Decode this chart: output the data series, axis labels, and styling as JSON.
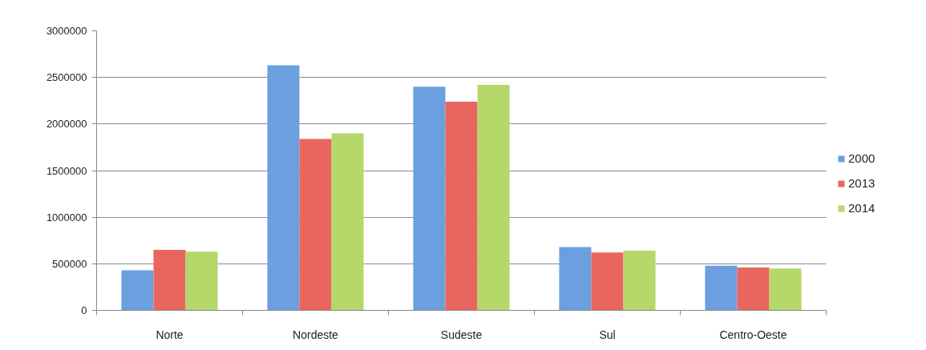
{
  "chart_data": {
    "type": "bar",
    "categories": [
      "Norte",
      "Nordeste",
      "Sudeste",
      "Sul",
      "Centro-Oeste"
    ],
    "series": [
      {
        "name": "2000",
        "color": "#6b9fe0",
        "values": [
          430000,
          2630000,
          2400000,
          680000,
          480000
        ]
      },
      {
        "name": "2013",
        "color": "#e9665f",
        "values": [
          650000,
          1840000,
          2240000,
          620000,
          460000
        ]
      },
      {
        "name": "2014",
        "color": "#b5d86b",
        "values": [
          630000,
          1900000,
          2420000,
          640000,
          450000
        ]
      }
    ],
    "ylim": [
      0,
      3000000
    ],
    "yticks": [
      0,
      500000,
      1000000,
      1500000,
      2000000,
      2500000,
      3000000
    ],
    "grid": "y",
    "legend": "right"
  }
}
